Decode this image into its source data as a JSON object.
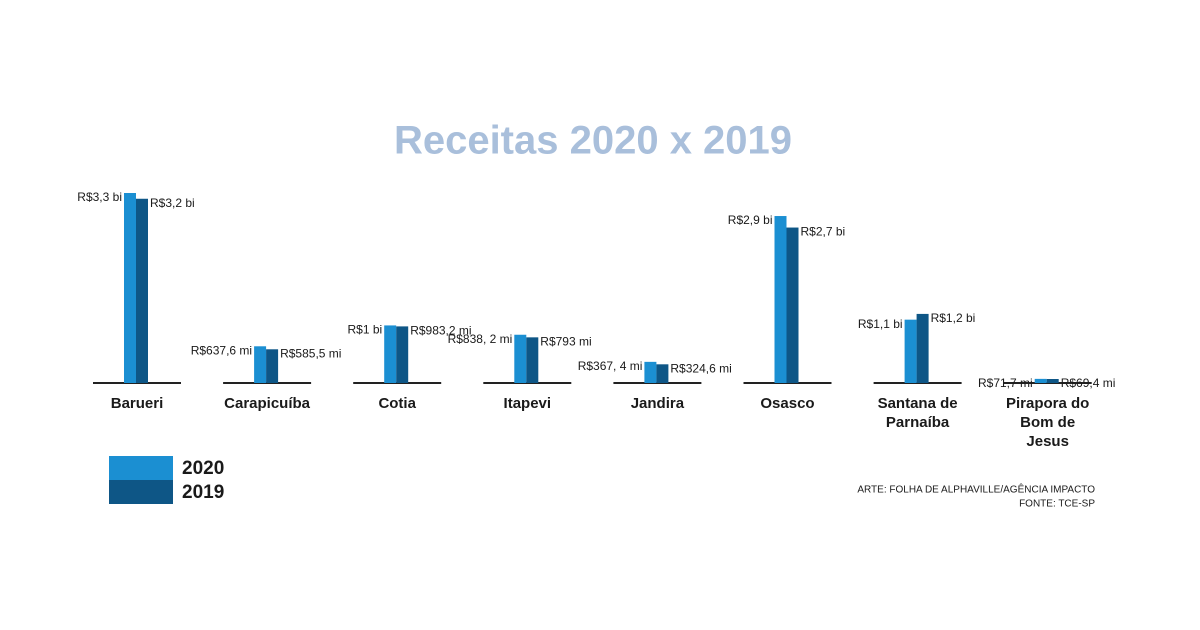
{
  "chart_data": {
    "type": "bar",
    "title": "Receitas 2020 x 2019",
    "categories": [
      "Barueri",
      "Carapicuíba",
      "Cotia",
      "Itapevi",
      "Jandira",
      "Osasco",
      "Santana de Parnaíba",
      "Pirapora do Bom de Jesus"
    ],
    "series": [
      {
        "name": "2020",
        "color": "#1b8fd2",
        "values": [
          3300,
          637.6,
          1000,
          838.2,
          367.4,
          2900,
          1100,
          71.7
        ],
        "value_labels": [
          "R$3,3 bi",
          "R$637,6 mi",
          "R$1 bi",
          "R$838, 2 mi",
          "R$367, 4 mi",
          "R$2,9 bi",
          "R$1,1 bi",
          "R$71,7 mi"
        ]
      },
      {
        "name": "2019",
        "color": "#0e5686",
        "values": [
          3200,
          585.5,
          983.2,
          793,
          324.6,
          2700,
          1200,
          69.4
        ],
        "value_labels": [
          "R$3,2 bi",
          "R$585,5 mi",
          "R$983,2 mi",
          "R$793 mi",
          "R$324,6 mi",
          "R$2,7 bi",
          "R$1,2 bi",
          "R$69,4 mi"
        ]
      }
    ],
    "notes": [
      "ARTE: FOLHA DE ALPHAVILLE/AGÊNCIA IMPACTO",
      "FONTE: TCE-SP"
    ]
  }
}
